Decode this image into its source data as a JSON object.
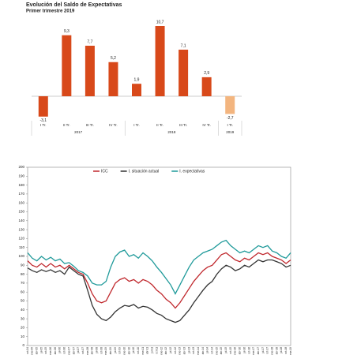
{
  "chart_data": [
    {
      "type": "bar",
      "title": "Evolución del Saldo de Expectativas",
      "subtitle": "Primer trimestre 2019",
      "groups": [
        {
          "name": "2017",
          "categories": [
            "I Tr.",
            "II Tr.",
            "III Tr.",
            "IV Tr."
          ]
        },
        {
          "name": "2018",
          "categories": [
            "I Tr.",
            "II Tr.",
            "III Tr.",
            "IV Tr."
          ]
        },
        {
          "name": "2019",
          "categories": [
            "I Tr."
          ]
        }
      ],
      "values": [
        -3.1,
        9.3,
        7.7,
        5.2,
        1.9,
        10.7,
        7.1,
        2.9,
        -2.7
      ],
      "value_labels": [
        "-3,1",
        "9,3",
        "7,7",
        "5,2",
        "1,9",
        "10,7",
        "7,1",
        "2,9",
        "-2,7"
      ],
      "colors": [
        "#d8491a",
        "#d8491a",
        "#d8491a",
        "#d8491a",
        "#d8491a",
        "#d8491a",
        "#d8491a",
        "#d8491a",
        "#f3b57f"
      ]
    },
    {
      "type": "line",
      "categories": [
        "oct-04",
        "ene-05",
        "abr-05",
        "jul-05",
        "oct-05",
        "ene-06",
        "abr-06",
        "jul-06",
        "oct-06",
        "ene-07",
        "abr-07",
        "jul-07",
        "oct-07",
        "ene-08",
        "abr-08",
        "jul-08",
        "oct-08",
        "ene-09",
        "abr-09",
        "jul-09",
        "oct-09",
        "ene-10",
        "abr-10",
        "jul-10",
        "oct-10",
        "ene-11",
        "abr-11",
        "jul-11",
        "oct-11",
        "ene-12",
        "abr-12",
        "jul-12",
        "oct-12",
        "ene-13",
        "abr-13",
        "jul-13",
        "oct-13",
        "ene-14",
        "abr-14",
        "jul-14",
        "oct-14",
        "ene-15",
        "abr-15",
        "jul-15",
        "oct-15",
        "ene-16",
        "abr-16",
        "jul-16",
        "oct-16",
        "ene-17",
        "abr-17",
        "jul-17",
        "oct-17",
        "ene-18",
        "abr-18",
        "jul-18",
        "oct-18",
        "ene-19"
      ],
      "series": [
        {
          "name": "ICC",
          "color": "#c0282d",
          "values": [
            95,
            90,
            88,
            92,
            88,
            92,
            88,
            90,
            86,
            90,
            86,
            82,
            80,
            70,
            58,
            50,
            48,
            50,
            60,
            70,
            74,
            76,
            72,
            74,
            70,
            74,
            72,
            68,
            62,
            58,
            52,
            48,
            42,
            48,
            56,
            64,
            72,
            78,
            84,
            88,
            90,
            96,
            102,
            104,
            100,
            96,
            94,
            98,
            96,
            100,
            104,
            102,
            104,
            100,
            98,
            96,
            92,
            96
          ]
        },
        {
          "name": "I. situación actual",
          "color": "#333333",
          "values": [
            87,
            84,
            82,
            85,
            83,
            85,
            82,
            84,
            80,
            88,
            84,
            80,
            78,
            62,
            45,
            35,
            30,
            28,
            32,
            38,
            42,
            45,
            44,
            46,
            42,
            44,
            43,
            40,
            36,
            34,
            30,
            28,
            26,
            28,
            34,
            40,
            48,
            55,
            62,
            68,
            72,
            80,
            86,
            90,
            88,
            84,
            86,
            90,
            88,
            92,
            96,
            94,
            96,
            96,
            94,
            92,
            88,
            90
          ]
        },
        {
          "name": "I. expectativas",
          "color": "#1f9a9a",
          "values": [
            104,
            98,
            95,
            100,
            96,
            99,
            95,
            97,
            92,
            93,
            89,
            84,
            82,
            78,
            70,
            68,
            68,
            72,
            88,
            100,
            105,
            107,
            100,
            102,
            98,
            104,
            100,
            95,
            88,
            82,
            75,
            68,
            58,
            68,
            78,
            88,
            96,
            100,
            104,
            106,
            108,
            112,
            116,
            118,
            112,
            108,
            104,
            106,
            104,
            108,
            112,
            110,
            112,
            106,
            104,
            100,
            98,
            104
          ]
        }
      ],
      "ylim": [
        0,
        200
      ],
      "yticks": [
        0,
        10,
        20,
        30,
        40,
        50,
        60,
        70,
        80,
        90,
        100,
        110,
        120,
        130,
        140,
        150,
        160,
        170,
        180,
        190,
        200
      ],
      "legend": "top"
    }
  ]
}
